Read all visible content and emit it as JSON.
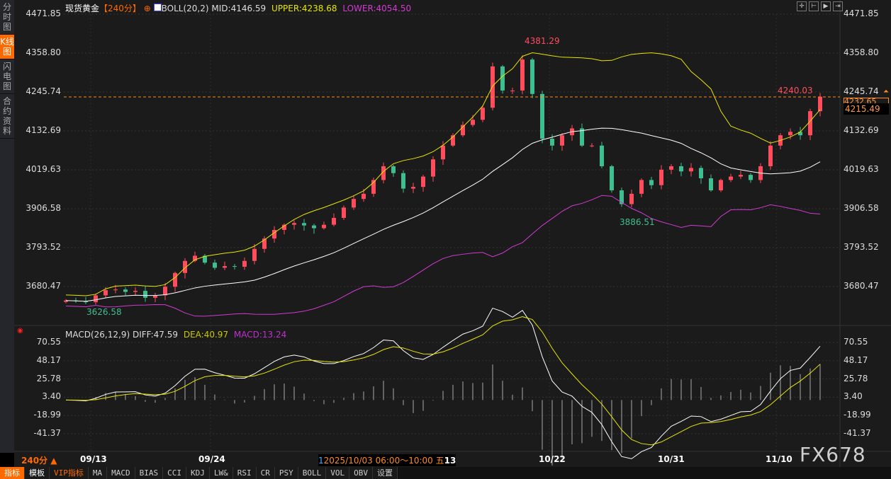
{
  "sidebar": {
    "items": [
      {
        "label": "分时图"
      },
      {
        "label": "K线图",
        "active": true
      },
      {
        "label": "闪电图"
      },
      {
        "label": "合约资料"
      }
    ]
  },
  "header": {
    "symbol": "现货黄金",
    "period": "【240分】",
    "indicator": "BOLL(20,2)",
    "mid": "MID:4146.59",
    "upper": "UPPER:4238.68",
    "lower": "LOWER:4054.50"
  },
  "toolbar": [
    "crosshair-icon",
    "zoom-in-icon",
    "play-icon",
    "jump-end-icon"
  ],
  "price_axis": [
    "4471.85",
    "4358.80",
    "4245.74",
    "4132.69",
    "4019.63",
    "3906.58",
    "3793.52",
    "3680.47"
  ],
  "price_tags": {
    "current": "4232.65",
    "cursor": "4215.49"
  },
  "annotations": {
    "high": "4381.29",
    "low": "3886.51",
    "start_low": "3626.58",
    "last_high": "4240.03"
  },
  "macd": {
    "title": "MACD(26,12,9)",
    "diff": "DIFF:47.59",
    "dea": "DEA:40.97",
    "macd": "MACD:13.24",
    "axis": [
      "70.55",
      "48.17",
      "25.78",
      "3.40",
      "-18.99",
      "-41.37"
    ]
  },
  "bottom": {
    "period": "240分 ▲",
    "dates": [
      "09/13",
      "09/24",
      "10/22",
      "10/31",
      "11/10"
    ],
    "tooltip": "2025/10/03 06:00～10:00 五",
    "tooltip_prefix": "1",
    "tooltip_suffix": "13",
    "watermark": "FX678"
  },
  "tabs": [
    "指标",
    "模板",
    "VIP指标",
    "MA",
    "MACD",
    "BIAS",
    "CCI",
    "KDJ",
    "LW&",
    "RSI",
    "CR",
    "PSY",
    "BOLL",
    "VOL",
    "OBV",
    "设置"
  ],
  "colors": {
    "up": "#ff4d5e",
    "down": "#3fbf8f",
    "mid": "#ffffff",
    "upper": "#e6e600",
    "lower": "#d23ad2",
    "accent": "#ff6a00"
  },
  "chart_data": {
    "type": "candlestick",
    "closes": [
      3640,
      3638,
      3635,
      3655,
      3670,
      3672,
      3665,
      3668,
      3648,
      3655,
      3680,
      3720,
      3755,
      3770,
      3750,
      3735,
      3740,
      3738,
      3755,
      3790,
      3820,
      3845,
      3860,
      3865,
      3858,
      3850,
      3860,
      3880,
      3910,
      3935,
      3950,
      3990,
      4030,
      4010,
      3965,
      3970,
      4000,
      4050,
      4090,
      4120,
      4150,
      4165,
      4200,
      4320,
      4250,
      4250,
      4340,
      4240,
      4110,
      4090,
      4120,
      4140,
      4090,
      4090,
      4030,
      3960,
      3920,
      3950,
      3990,
      3975,
      4020,
      4030,
      4015,
      4025,
      3995,
      3960,
      3990,
      4000,
      4005,
      3990,
      4030,
      4090,
      4120,
      4130,
      4120,
      4190,
      4232
    ],
    "ylim": [
      3626.58,
      4471.85
    ]
  }
}
